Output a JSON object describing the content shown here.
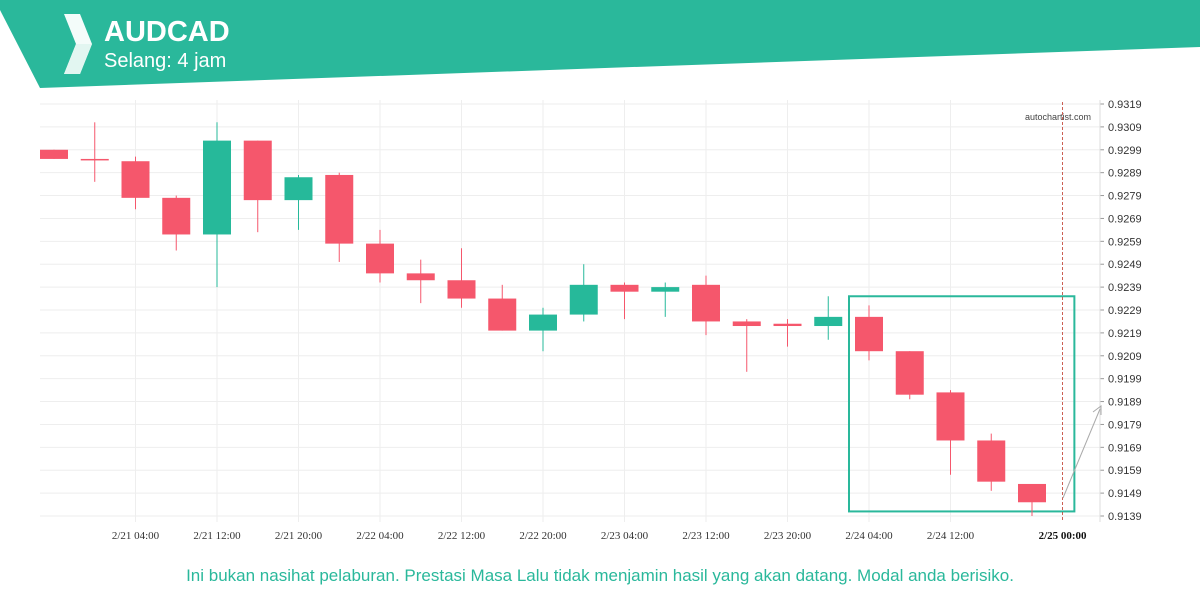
{
  "header": {
    "symbol": "AUDCAD",
    "interval": "Selang: 4 jam"
  },
  "watermark": "autochartist.com",
  "disclaimer": "Ini bukan nasihat pelaburan. Prestasi Masa Lalu tidak menjamin hasil yang akan datang. Modal anda berisiko.",
  "colors": {
    "brand": "#2ab89b",
    "bullish": "#26b99a",
    "bearish": "#f5576c",
    "grid": "#eeeeee",
    "axis_text": "#333333"
  },
  "chart_data": {
    "type": "candlestick",
    "ylim": [
      0.9136,
      0.9319
    ],
    "y_ticks": [
      "0.9319",
      "0.9309",
      "0.9299",
      "0.9289",
      "0.9279",
      "0.9269",
      "0.9259",
      "0.9249",
      "0.9239",
      "0.9229",
      "0.9219",
      "0.9209",
      "0.9199",
      "0.9189",
      "0.9179",
      "0.9169",
      "0.9159",
      "0.9149",
      "0.9139"
    ],
    "x_ticks": [
      {
        "label": "2/21 04:00",
        "index": 2
      },
      {
        "label": "2/21 12:00",
        "index": 4
      },
      {
        "label": "2/21 20:00",
        "index": 6
      },
      {
        "label": "2/22 04:00",
        "index": 8
      },
      {
        "label": "2/22 12:00",
        "index": 10
      },
      {
        "label": "2/22 20:00",
        "index": 12
      },
      {
        "label": "2/23 04:00",
        "index": 14
      },
      {
        "label": "2/23 12:00",
        "index": 16
      },
      {
        "label": "2/23 20:00",
        "index": 18
      },
      {
        "label": "2/24 04:00",
        "index": 20
      },
      {
        "label": "2/24 12:00",
        "index": 22
      },
      {
        "label": "2/25 00:00",
        "index": 24.75,
        "bold": true
      }
    ],
    "candles": [
      {
        "open": 0.9299,
        "high": 0.9299,
        "low": 0.9295,
        "close": 0.9295
      },
      {
        "open": 0.9295,
        "high": 0.9311,
        "low": 0.9285,
        "close": 0.9295
      },
      {
        "open": 0.9294,
        "high": 0.9296,
        "low": 0.9273,
        "close": 0.9278
      },
      {
        "open": 0.9278,
        "high": 0.9279,
        "low": 0.9255,
        "close": 0.9262
      },
      {
        "open": 0.9262,
        "high": 0.9311,
        "low": 0.9239,
        "close": 0.9303
      },
      {
        "open": 0.9303,
        "high": 0.9303,
        "low": 0.9263,
        "close": 0.9277
      },
      {
        "open": 0.9277,
        "high": 0.9288,
        "low": 0.9264,
        "close": 0.9287
      },
      {
        "open": 0.9288,
        "high": 0.9289,
        "low": 0.925,
        "close": 0.9258
      },
      {
        "open": 0.9258,
        "high": 0.9264,
        "low": 0.9241,
        "close": 0.9245
      },
      {
        "open": 0.9245,
        "high": 0.9251,
        "low": 0.9232,
        "close": 0.9242
      },
      {
        "open": 0.9242,
        "high": 0.9256,
        "low": 0.923,
        "close": 0.9234
      },
      {
        "open": 0.9234,
        "high": 0.924,
        "low": 0.922,
        "close": 0.922
      },
      {
        "open": 0.922,
        "high": 0.923,
        "low": 0.9211,
        "close": 0.9227
      },
      {
        "open": 0.9227,
        "high": 0.9249,
        "low": 0.9224,
        "close": 0.924
      },
      {
        "open": 0.924,
        "high": 0.9241,
        "low": 0.9225,
        "close": 0.9237
      },
      {
        "open": 0.9237,
        "high": 0.9241,
        "low": 0.9226,
        "close": 0.9239
      },
      {
        "open": 0.924,
        "high": 0.9244,
        "low": 0.9218,
        "close": 0.9224
      },
      {
        "open": 0.9224,
        "high": 0.9225,
        "low": 0.9202,
        "close": 0.9222
      },
      {
        "open": 0.9223,
        "high": 0.9225,
        "low": 0.9213,
        "close": 0.9222
      },
      {
        "open": 0.9222,
        "high": 0.9235,
        "low": 0.9216,
        "close": 0.9226
      },
      {
        "open": 0.9226,
        "high": 0.9231,
        "low": 0.9207,
        "close": 0.9211
      },
      {
        "open": 0.9211,
        "high": 0.9211,
        "low": 0.919,
        "close": 0.9192
      },
      {
        "open": 0.9193,
        "high": 0.9194,
        "low": 0.9157,
        "close": 0.9172
      },
      {
        "open": 0.9172,
        "high": 0.9175,
        "low": 0.915,
        "close": 0.9154
      },
      {
        "open": 0.9153,
        "high": 0.9153,
        "low": 0.9139,
        "close": 0.9145
      }
    ],
    "pattern_box": {
      "start_index": 20,
      "end_index": 24.5,
      "high": 0.9235,
      "low": 0.9141
    },
    "current_time_index": 24.75
  }
}
